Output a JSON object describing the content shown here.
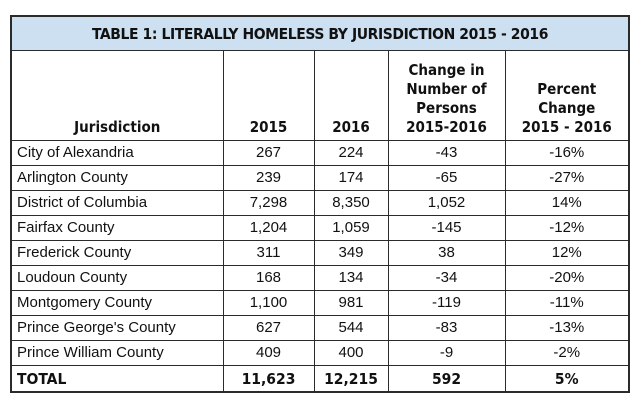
{
  "table": {
    "title": "TABLE 1: LITERALLY HOMELESS BY JURISDICTION 2015 - 2016",
    "headers": {
      "jurisdiction": "Jurisdiction",
      "y2015": "2015",
      "y2016": "2016",
      "change_line1": "Change in",
      "change_line2": "Number of",
      "change_line3": "Persons",
      "change_line4": "2015-2016",
      "percent_line1": "Percent",
      "percent_line2": "Change",
      "percent_line3": "2015 - 2016"
    },
    "rows": [
      {
        "name": "City of Alexandria",
        "y2015": "267",
        "y2016": "224",
        "change": "-43",
        "percent": "-16%"
      },
      {
        "name": "Arlington County",
        "y2015": "239",
        "y2016": "174",
        "change": "-65",
        "percent": "-27%"
      },
      {
        "name": "District of Columbia",
        "y2015": "7,298",
        "y2016": "8,350",
        "change": "1,052",
        "percent": "14%"
      },
      {
        "name": "Fairfax County",
        "y2015": "1,204",
        "y2016": "1,059",
        "change": "-145",
        "percent": "-12%"
      },
      {
        "name": "Frederick County",
        "y2015": "311",
        "y2016": "349",
        "change": "38",
        "percent": "12%"
      },
      {
        "name": "Loudoun County",
        "y2015": "168",
        "y2016": "134",
        "change": "-34",
        "percent": "-20%"
      },
      {
        "name": "Montgomery County",
        "y2015": "1,100",
        "y2016": "981",
        "change": "-119",
        "percent": "-11%"
      },
      {
        "name": "Prince George's County",
        "y2015": "627",
        "y2016": "544",
        "change": "-83",
        "percent": "-13%"
      },
      {
        "name": "Prince William County",
        "y2015": "409",
        "y2016": "400",
        "change": "-9",
        "percent": "-2%"
      }
    ],
    "total": {
      "name": "TOTAL",
      "y2015": "11,623",
      "y2016": "12,215",
      "change": "592",
      "percent": "5%"
    }
  },
  "colors": {
    "title_background": "#cde0f2",
    "border": "#2b2b2b",
    "text": "#111111"
  }
}
